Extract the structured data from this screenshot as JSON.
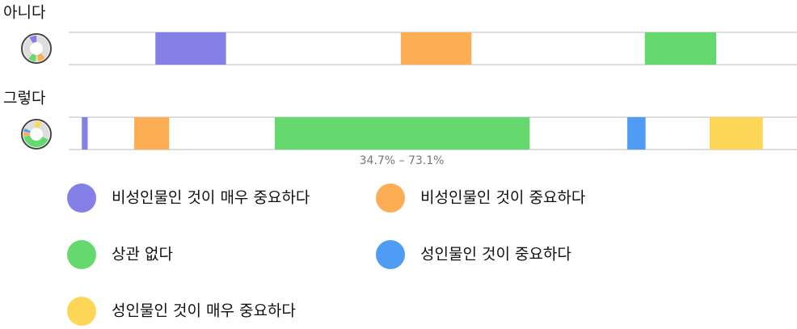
{
  "chart_data": {
    "type": "segments",
    "series": [
      {
        "name": "비성인물인 것이 매우 중요하다",
        "color": "#8480e6"
      },
      {
        "name": "비성인물인 것이 중요하다",
        "color": "#fdae55"
      },
      {
        "name": "상관 없다",
        "color": "#66d96e"
      },
      {
        "name": "성인물인 것이 중요하다",
        "color": "#4f9cf5"
      },
      {
        "name": "성인물인 것이 매우 중요하다",
        "color": "#fed657"
      }
    ],
    "xlim": [
      0,
      100
    ],
    "rows": [
      {
        "name": "아니다",
        "segments": [
          {
            "series": 0,
            "start": 11.9,
            "end": 21.6
          },
          {
            "series": 1,
            "start": 45.6,
            "end": 55.3
          },
          {
            "series": 2,
            "start": 79.1,
            "end": 88.9
          }
        ]
      },
      {
        "name": "그렇다",
        "segments": [
          {
            "series": 0,
            "start": 1.8,
            "end": 2.6
          },
          {
            "series": 1,
            "start": 9.0,
            "end": 13.8
          },
          {
            "series": 2,
            "start": 28.3,
            "end": 63.3
          },
          {
            "series": 3,
            "start": 76.7,
            "end": 79.2
          },
          {
            "series": 4,
            "start": 88.0,
            "end": 95.3
          }
        ]
      }
    ],
    "annotation": "34.7% – 73.1%"
  }
}
